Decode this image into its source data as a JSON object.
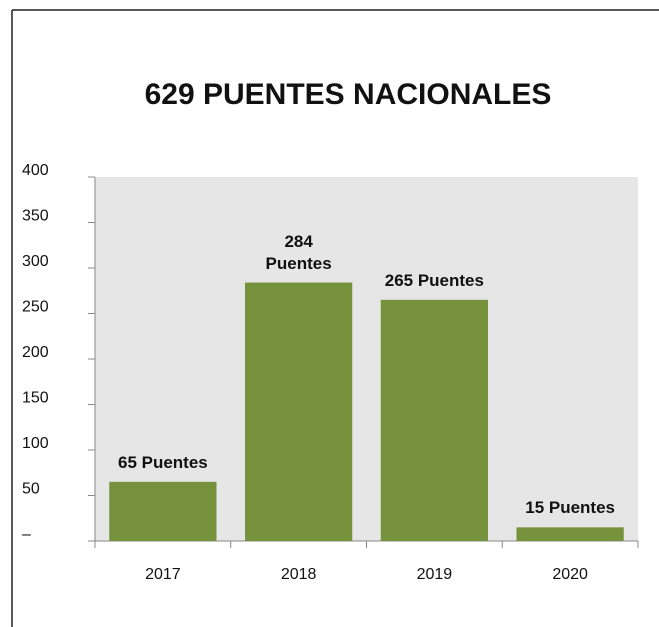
{
  "chart_data": {
    "type": "bar",
    "title": "629 PUENTES NACIONALES",
    "categories": [
      "2017",
      "2018",
      "2019",
      "2020"
    ],
    "values": [
      65,
      284,
      265,
      15
    ],
    "value_labels": [
      "65 Puentes",
      "284 Puentes",
      "265 Puentes",
      "15 Puentes"
    ],
    "color": "#77923c",
    "ylim": [
      0,
      400
    ],
    "yticks": [
      {
        "value": 0,
        "label": "–"
      },
      50,
      100,
      150,
      200,
      250,
      300,
      350,
      400
    ]
  }
}
